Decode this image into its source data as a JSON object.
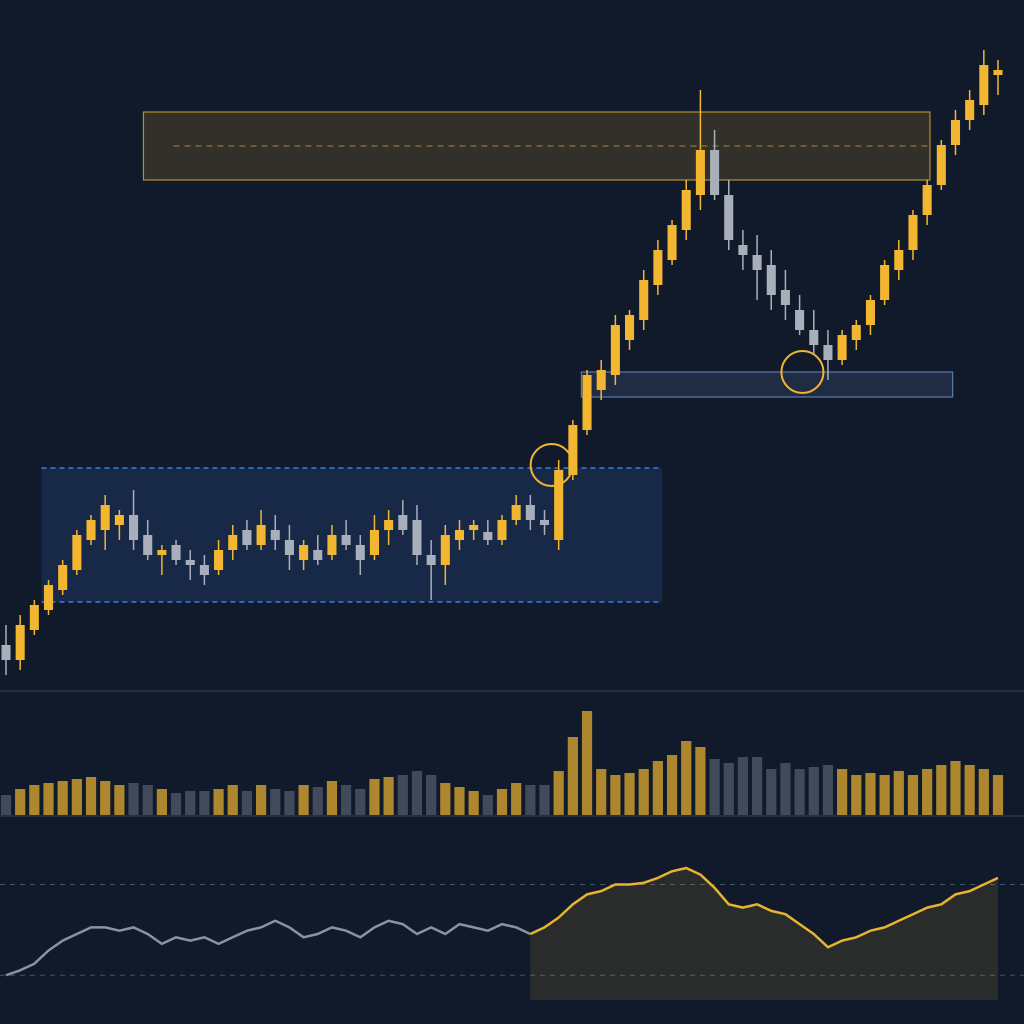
{
  "chart_data": [
    {
      "type": "candlestick",
      "up_color": "#f2b630",
      "down_color": "#a9afba",
      "open": [
        45,
        30,
        60,
        80,
        100,
        120,
        150,
        160,
        165,
        175,
        155,
        135,
        145,
        130,
        125,
        120,
        140,
        160,
        145,
        160,
        150,
        130,
        140,
        135,
        155,
        145,
        135,
        160,
        175,
        170,
        135,
        125,
        150,
        160,
        158,
        150,
        170,
        185,
        170,
        150,
        215,
        260,
        300,
        315,
        350,
        370,
        405,
        430,
        460,
        495,
        540,
        495,
        445,
        435,
        425,
        400,
        380,
        360,
        345,
        330,
        350,
        365,
        390,
        420,
        440,
        475,
        505,
        545,
        570,
        585,
        615
      ],
      "high": [
        65,
        75,
        90,
        110,
        130,
        160,
        175,
        195,
        180,
        200,
        170,
        145,
        150,
        140,
        135,
        150,
        165,
        170,
        180,
        175,
        165,
        150,
        155,
        165,
        170,
        155,
        175,
        180,
        190,
        185,
        150,
        165,
        170,
        170,
        170,
        175,
        195,
        195,
        180,
        230,
        270,
        320,
        330,
        375,
        380,
        420,
        450,
        470,
        510,
        600,
        560,
        510,
        460,
        455,
        440,
        420,
        395,
        380,
        360,
        360,
        370,
        395,
        430,
        450,
        480,
        510,
        550,
        580,
        600,
        640,
        630
      ],
      "low": [
        15,
        20,
        55,
        75,
        95,
        115,
        145,
        140,
        150,
        140,
        130,
        115,
        125,
        110,
        105,
        115,
        130,
        140,
        140,
        140,
        120,
        120,
        125,
        130,
        140,
        115,
        130,
        145,
        155,
        125,
        90,
        105,
        140,
        150,
        145,
        145,
        165,
        160,
        155,
        140,
        210,
        255,
        290,
        305,
        340,
        360,
        395,
        425,
        450,
        480,
        490,
        440,
        420,
        390,
        380,
        370,
        355,
        335,
        310,
        325,
        340,
        355,
        385,
        410,
        430,
        465,
        500,
        535,
        560,
        575,
        595
      ],
      "close": [
        30,
        65,
        85,
        105,
        125,
        155,
        170,
        185,
        175,
        150,
        135,
        140,
        130,
        125,
        115,
        140,
        155,
        145,
        165,
        150,
        135,
        145,
        130,
        155,
        145,
        130,
        160,
        170,
        160,
        135,
        125,
        155,
        160,
        165,
        150,
        170,
        185,
        170,
        165,
        220,
        265,
        315,
        320,
        365,
        375,
        410,
        440,
        465,
        500,
        540,
        495,
        450,
        435,
        420,
        395,
        385,
        360,
        345,
        330,
        355,
        365,
        390,
        425,
        440,
        475,
        505,
        545,
        570,
        590,
        625,
        620
      ],
      "ylim": [
        0,
        660
      ],
      "zones": [
        {
          "x0": 9.7,
          "x1": 65.2,
          "y0": 510,
          "y1": 578,
          "color": "#e0a82e"
        },
        {
          "x0": 40.6,
          "x1": 66.8,
          "y0": 293,
          "y1": 318,
          "color": "#6d8fc9"
        },
        {
          "x0": 2.5,
          "x1": 46.3,
          "y0": 88,
          "y1": 222,
          "color": "#3d7be0"
        }
      ],
      "highlights": [
        {
          "index": 38.5,
          "value": 225
        },
        {
          "index": 56.2,
          "value": 318
        }
      ]
    },
    {
      "type": "bar",
      "up_color": "#c99a2e",
      "down_color": "#4a5263",
      "values": [
        20,
        26,
        30,
        32,
        34,
        36,
        38,
        34,
        30,
        32,
        30,
        26,
        22,
        24,
        24,
        26,
        30,
        24,
        30,
        26,
        24,
        30,
        28,
        34,
        30,
        26,
        36,
        38,
        40,
        44,
        40,
        32,
        28,
        24,
        20,
        26,
        32,
        30,
        30,
        44,
        78,
        104,
        46,
        40,
        42,
        46,
        54,
        60,
        74,
        68,
        56,
        52,
        58,
        58,
        46,
        52,
        46,
        48,
        50,
        46,
        40,
        42,
        40,
        44,
        40,
        46,
        50,
        54,
        50,
        46,
        40
      ],
      "ylim": [
        0,
        110
      ]
    },
    {
      "type": "line",
      "series": [
        {
          "color": "#8b93a3",
          "values": [
            15,
            18,
            22,
            30,
            36,
            40,
            44,
            44,
            42,
            44,
            40,
            34,
            38,
            36,
            38,
            34,
            38,
            42,
            44,
            48,
            44,
            38,
            40,
            44,
            42,
            38,
            44,
            48,
            46,
            40,
            44,
            40,
            46,
            44,
            42,
            46,
            44,
            40,
            null,
            null,
            null,
            null,
            null,
            null,
            null,
            null,
            null,
            null,
            null,
            null,
            null,
            null,
            null,
            null,
            null,
            null,
            null,
            null,
            null,
            null,
            null,
            null,
            null,
            null,
            null,
            null,
            null,
            null,
            null,
            null,
            null
          ]
        },
        {
          "color": "#e8b32e",
          "values": [
            null,
            null,
            null,
            null,
            null,
            null,
            null,
            null,
            null,
            null,
            null,
            null,
            null,
            null,
            null,
            null,
            null,
            null,
            null,
            null,
            null,
            null,
            null,
            null,
            null,
            null,
            null,
            null,
            null,
            null,
            null,
            null,
            null,
            null,
            null,
            null,
            null,
            40,
            44,
            50,
            58,
            64,
            66,
            70,
            70,
            71,
            74,
            78,
            80,
            76,
            68,
            58,
            56,
            58,
            54,
            52,
            46,
            40,
            32,
            36,
            38,
            42,
            44,
            48,
            52,
            56,
            58,
            64,
            66,
            70,
            74
          ]
        }
      ],
      "ylim": [
        0,
        100
      ],
      "reference_lines": [
        70,
        15
      ]
    }
  ]
}
